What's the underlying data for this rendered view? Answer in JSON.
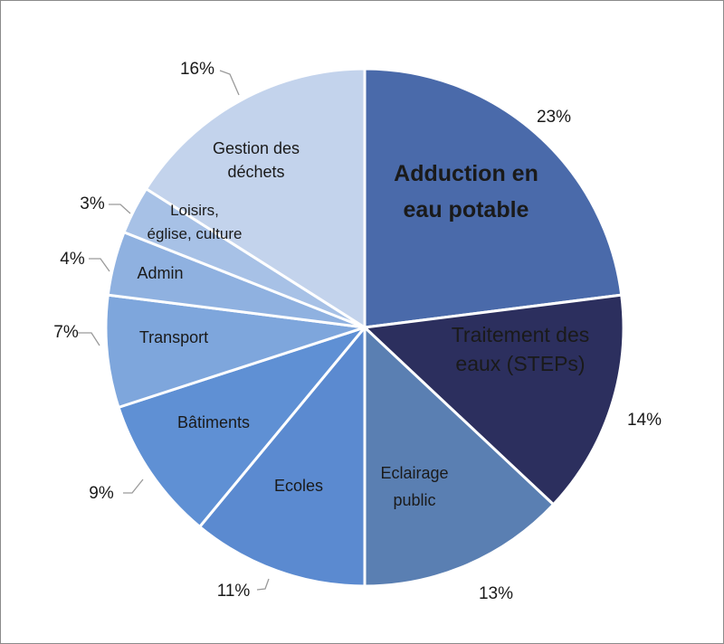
{
  "chart_data": {
    "type": "pie",
    "title": "",
    "slices": [
      {
        "label": [
          "Adduction en",
          "eau potable"
        ],
        "value": 23,
        "percent_label": "23%",
        "color": "#4a6aaa",
        "text_color": "#1a1a1a",
        "bold": true
      },
      {
        "label": [
          "Traitement des",
          "eaux (STEPs)"
        ],
        "value": 14,
        "percent_label": "14%",
        "color": "#2c2f5e",
        "text_color": "#ffffff",
        "bold": false
      },
      {
        "label": [
          "Eclairage",
          "public"
        ],
        "value": 13,
        "percent_label": "13%",
        "color": "#5a7fb2",
        "text_color": "#ffffff",
        "bold": false
      },
      {
        "label": [
          "Ecoles"
        ],
        "value": 11,
        "percent_label": "11%",
        "color": "#5b8ad0",
        "text_color": "#1a1a1a",
        "bold": false
      },
      {
        "label": [
          "Bâtiments"
        ],
        "value": 9,
        "percent_label": "9%",
        "color": "#5f90d4",
        "text_color": "#1a1a1a",
        "bold": false
      },
      {
        "label": [
          "Transport"
        ],
        "value": 7,
        "percent_label": "7%",
        "color": "#7ea6dc",
        "text_color": "#1a1a1a",
        "bold": false
      },
      {
        "label": [
          "Admin"
        ],
        "value": 4,
        "percent_label": "4%",
        "color": "#8fb1e0",
        "text_color": "#1a1a1a",
        "bold": false
      },
      {
        "label": [
          "Loisirs,",
          "église, culture"
        ],
        "value": 3,
        "percent_label": "3%",
        "color": "#a7c1e6",
        "text_color": "#1a1a1a",
        "bold": false
      },
      {
        "label": [
          "Gestion des",
          "déchets"
        ],
        "value": 16,
        "percent_label": "16%",
        "color": "#c3d3ec",
        "text_color": "#1a1a1a",
        "bold": false
      }
    ],
    "start_angle_deg": 0,
    "direction": "clockwise",
    "slice_border_color": "#ffffff",
    "legend": "none"
  }
}
